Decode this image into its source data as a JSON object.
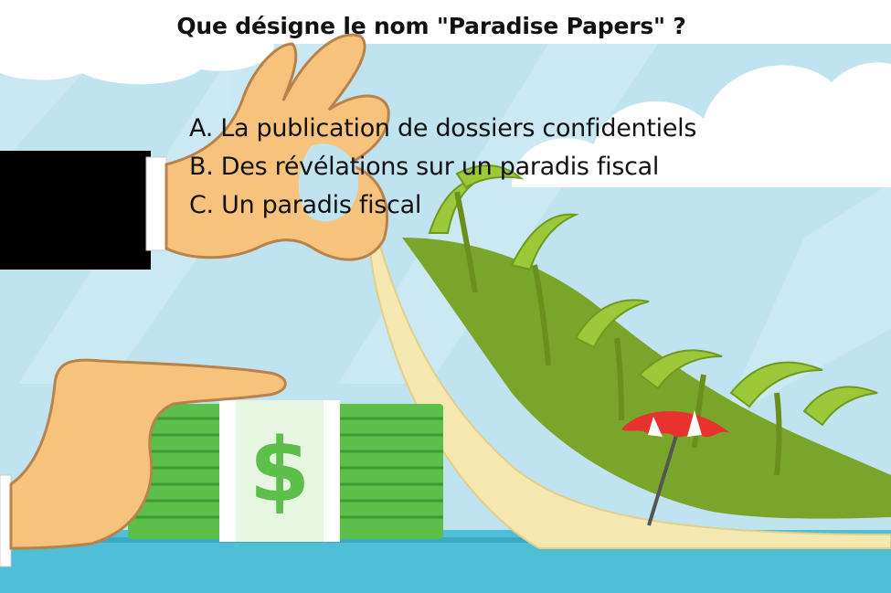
{
  "question": {
    "title": "Que désigne le nom \"Paradise Papers\" ?",
    "options": [
      "A. La publication de dossiers confidentiels",
      "B. Des révélations sur un paradis fiscal",
      "C. Un paradis fiscal"
    ]
  },
  "illustration": {
    "banknote_symbol": "$",
    "colors": {
      "sky": "#bfe3ef",
      "sea": "#4ebfd6",
      "money_green": "#5bbf4a",
      "skin": "#f6c27c",
      "sleeve": "#000000",
      "palm_green": "#8dbb2a",
      "parasol_red": "#e8322e"
    }
  }
}
